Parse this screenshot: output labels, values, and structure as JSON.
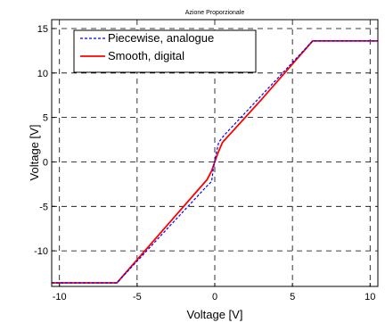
{
  "chart_data": {
    "type": "line",
    "title": "Azione Proporzionale",
    "xlabel": "Voltage [V]",
    "ylabel": "Voltage [V]",
    "xlim": [
      -10.5,
      10.5
    ],
    "ylim": [
      -14,
      16
    ],
    "xticks": [
      -10,
      -5,
      0,
      5,
      10
    ],
    "xtick_labels": [
      "-10",
      "-5",
      "0",
      "5",
      "10"
    ],
    "yticks": [
      15,
      10,
      5,
      0,
      -5,
      -10
    ],
    "ytick_labels": [
      "15",
      "10",
      "5",
      "0",
      "-5",
      "-10"
    ],
    "grid": true,
    "grid_style": "dashed",
    "legend_position": "top-left",
    "series": [
      {
        "name": "Piecewise, analogue",
        "color": "#0000ff",
        "style": "dashed",
        "x": [
          -10.5,
          -6.3,
          -0.5,
          -0.2,
          -0.1,
          0.1,
          0.25,
          0.6,
          6.3,
          10.5
        ],
        "y": [
          -13.6,
          -13.6,
          -2.7,
          -2.2,
          -0.8,
          1.0,
          2.2,
          3.0,
          13.6,
          13.6
        ]
      },
      {
        "name": "Smooth, digital",
        "color": "#ff0000",
        "style": "solid",
        "x": [
          -10.5,
          -6.3,
          -3,
          -0.5,
          -0.2,
          0,
          0.2,
          0.5,
          3,
          6.3,
          10.5
        ],
        "y": [
          -13.6,
          -13.6,
          -7.0,
          -2.0,
          -1.0,
          0.0,
          1.0,
          2.2,
          7.0,
          13.6,
          13.6
        ]
      }
    ]
  }
}
